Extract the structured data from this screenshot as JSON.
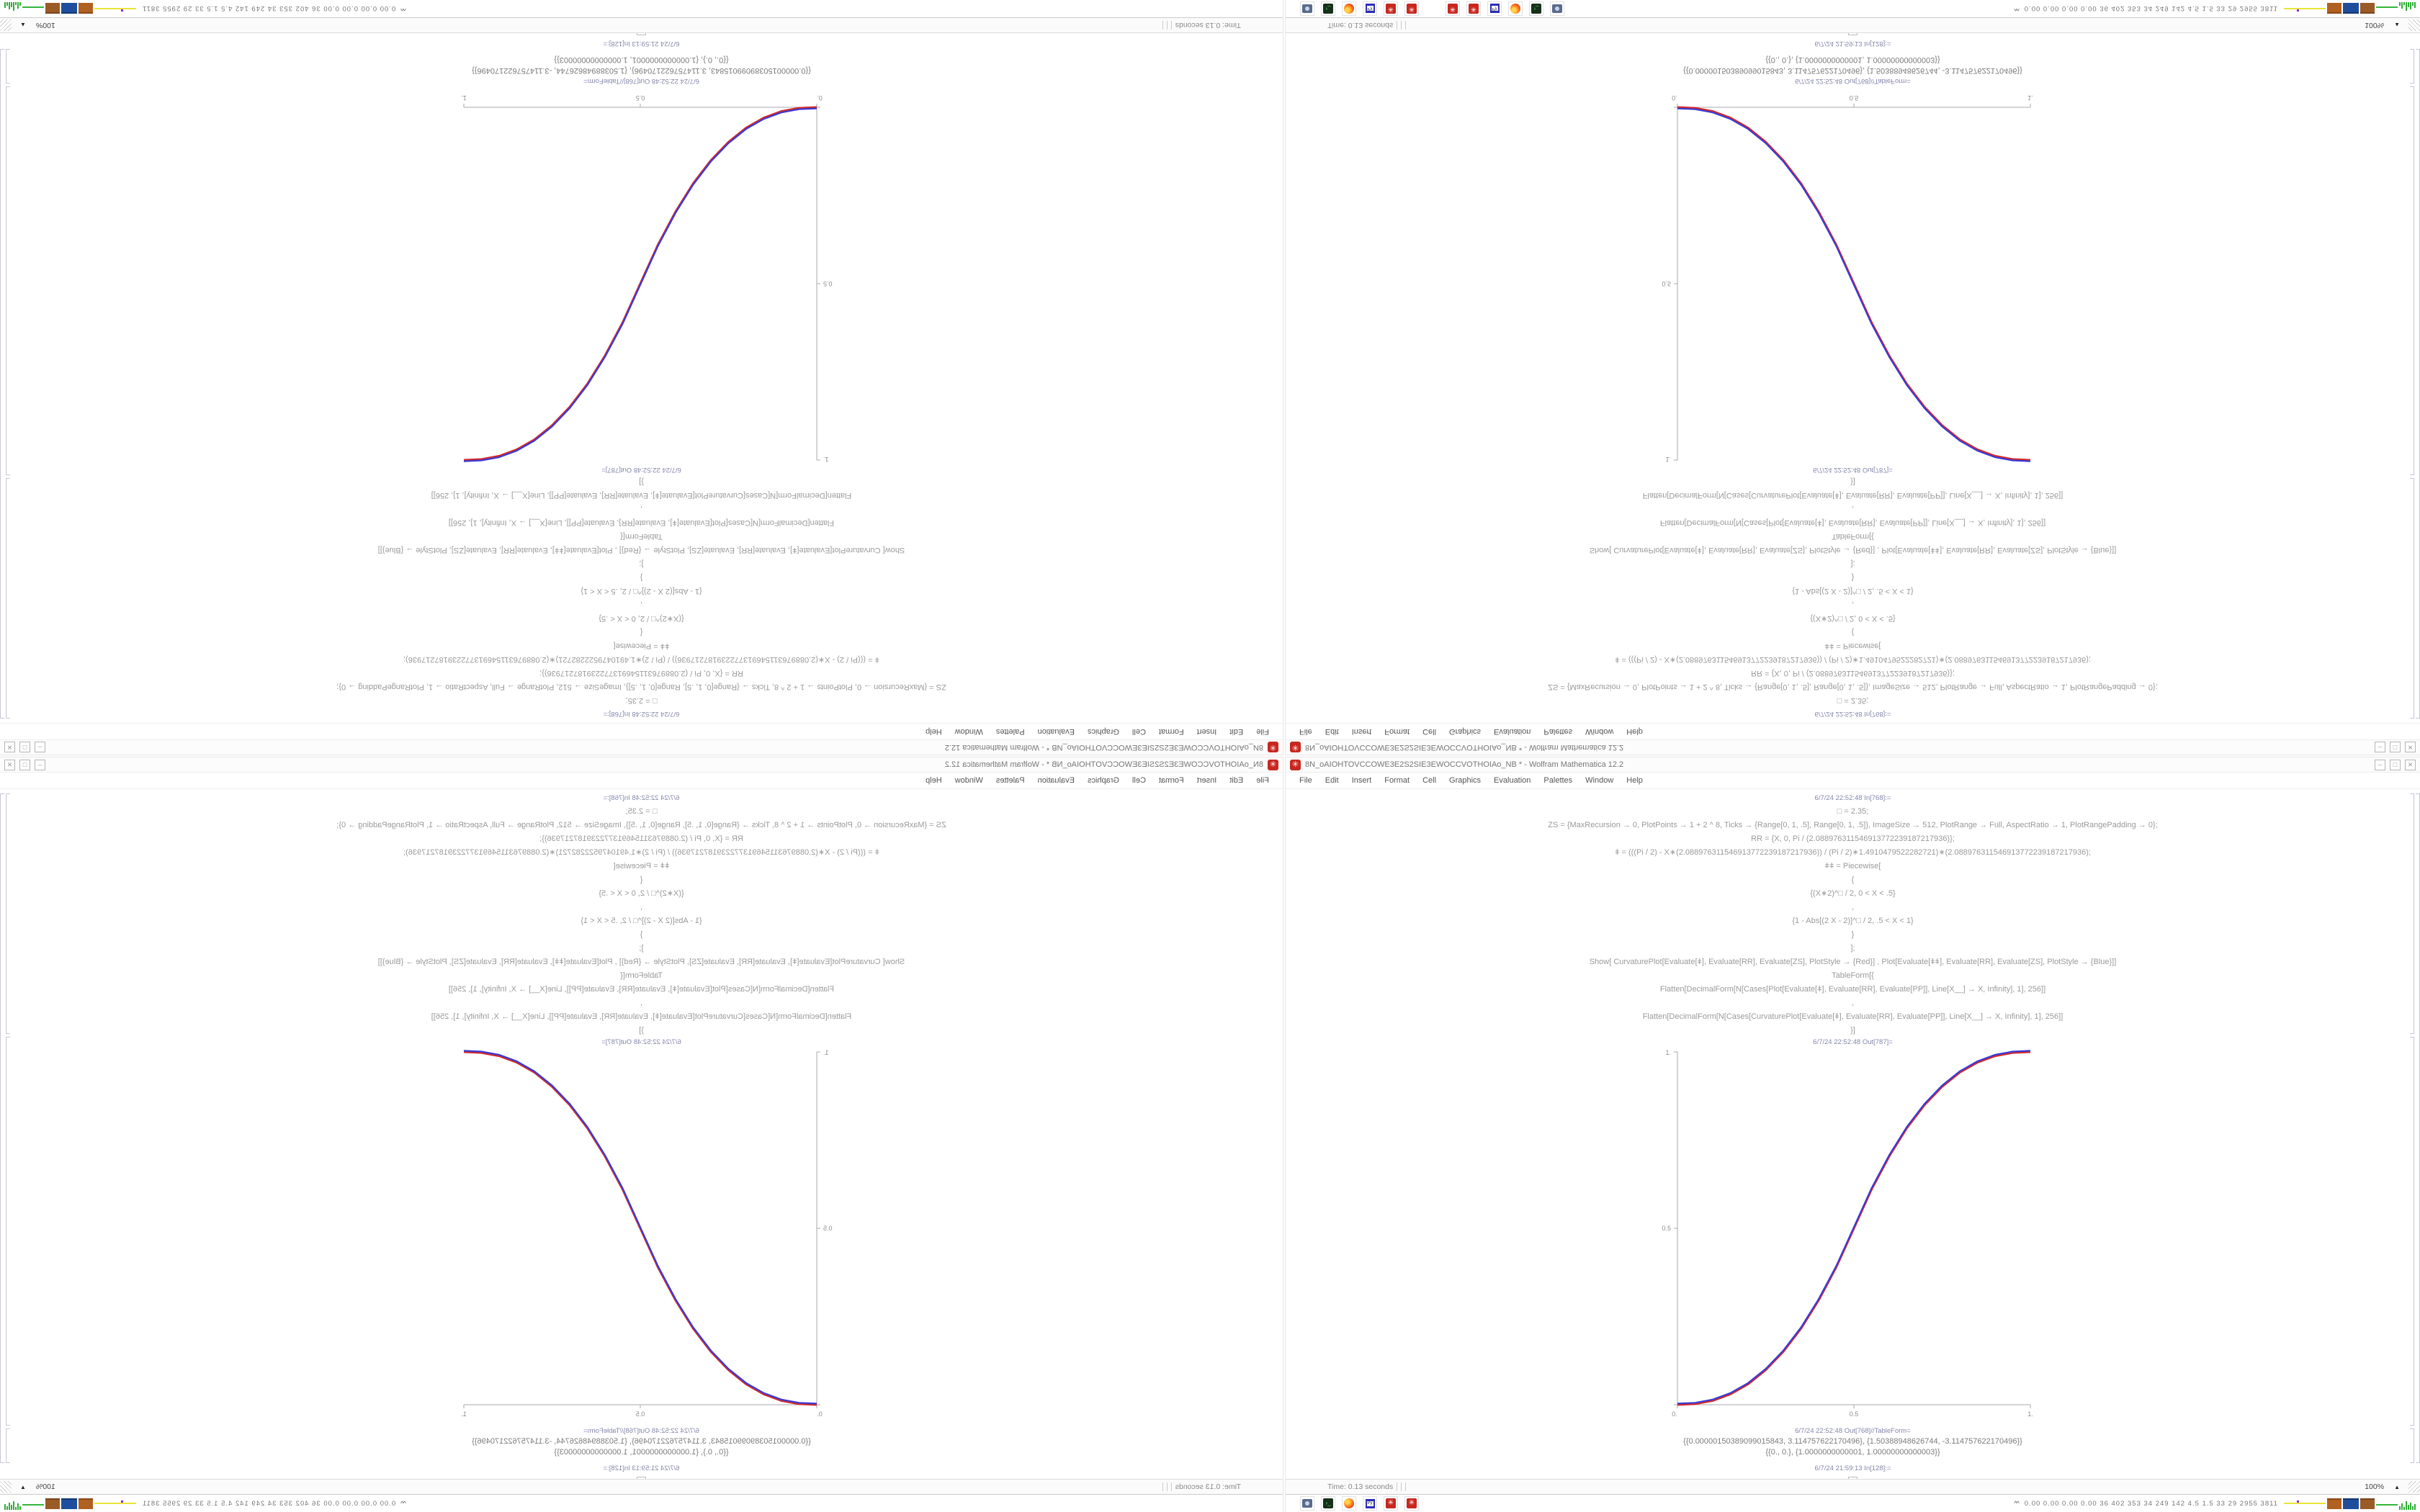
{
  "window": {
    "title": "8N_oAIOHTOVCCOWE3E2S2SIE3EWOCCVOTHOIAo_NB * - Wolfram Mathematica 12.2",
    "app_icon_glyph": "✳",
    "controls": [
      "–",
      "□",
      "✕"
    ],
    "menu": [
      "File",
      "Edit",
      "Insert",
      "Format",
      "Cell",
      "Graphics",
      "Evaluation",
      "Palettes",
      "Window",
      "Help"
    ],
    "status": {
      "time": "Time: 0.13 seconds",
      "zoom": "100%",
      "zoom_arrow": "▲"
    }
  },
  "notebook": {
    "in_label_top": "6/7/24 22:52:48 In[768]:=",
    "code_lines": [
      "□ = 2.35;",
      "ZS = {MaxRecursion → 0, PlotPoints → 1 + 2 ^ 8, Ticks → {Range[0, 1, .5], Range[0, 1, .5]}, ImageSize → 512, PlotRange → Full, AspectRatio → 1, PlotRangePadding → 0};",
      "RR = {X, 0, Pi / (2.088976311546913772239187217936)};",
      "ǂ = (((Pi / 2) - X∗(2.088976311546913772239187217936)) / (Pi / 2)∗1.4910479522282721)∗(2.088976311546913772239187217936);",
      "ǂǂ = Piecewise[",
      "{",
      "{(X∗2)^□ / 2, 0 < X < .5}",
      ",",
      "{1 - Abs[(2 X - 2)]^□ / 2, .5 < X < 1}",
      "}",
      "];",
      "Show[  CurvaturePlot[Evaluate[ǂ], Evaluate[RR], Evaluate[ZS], PlotStyle → {Red}]  ,  Plot[Evaluate[ǂǂ], Evaluate[RR], Evaluate[ZS], PlotStyle → {Blue}]]",
      "TableForm[{",
      "Flatten[DecimalForm[N[Cases[Plot[Evaluate[ǂ], Evaluate[RR], Evaluate[PP]], Line[X__] → X, Infinity], 1], 256]]",
      ",",
      "Flatten[DecimalForm[N[Cases[CurvaturePlot[Evaluate[ǂ], Evaluate[RR], Evaluate[PP]], Line[X__] → X, Infinity], 1], 256]]",
      "}]"
    ],
    "out_plot_label": "6/7/24 22:52:48 Out[787]=",
    "out_table_label": "6/7/24 22:52:48 Out[768]//TableForm=",
    "table_rows": [
      "{{0.00000150389099015843, 3.114757622170496}, {1.50388948626744, -3.114757622170496}}",
      "{{0., 0.}, {1.0000000000001, 1.00000000000003}}"
    ],
    "in_label_bottom": "6/7/24 21:59:13 In[128]:=",
    "insertion_plus": "+"
  },
  "taskbar": {
    "chevron": "^^",
    "tray_stats": "0.00 0.00 0.00 0.00   36   402   353   34   249   142   4.5   1.5   33   29   2955 3811",
    "floppy_label": "Py",
    "icon_group_1": [
      "mathematica",
      "mathematica",
      "floppy-editor",
      "firefox",
      "terminal",
      "screenshot-tool"
    ],
    "icon_group_2": [
      "screenshot-tool",
      "terminal",
      "firefox",
      "floppy-editor",
      "mathematica",
      "mathematica"
    ]
  },
  "chart_data": {
    "type": "line",
    "title": "",
    "xlabel": "",
    "ylabel": "",
    "xlim": [
      0,
      1
    ],
    "ylim": [
      0,
      1
    ],
    "x_ticks": [
      "0.",
      "0.5",
      "1."
    ],
    "y_ticks": [
      "0.",
      "0.5",
      "1."
    ],
    "grid": false,
    "legend_position": "none",
    "description": "Sigmoid-like piecewise power curve (2x)^2.35/2 for 0<x<.5 and 1-Abs[(2x-2)]^2.35/2 for .5<x<1; red CurvaturePlot and blue Plot overlap",
    "series": [
      {
        "name": "CurvaturePlot (Red)",
        "color": "#d42a2a",
        "points": [
          [
            0,
            0
          ],
          [
            0.05,
            0.0022
          ],
          [
            0.1,
            0.0114
          ],
          [
            0.15,
            0.0297
          ],
          [
            0.2,
            0.0582
          ],
          [
            0.25,
            0.0983
          ],
          [
            0.3,
            0.1505
          ],
          [
            0.35,
            0.2158
          ],
          [
            0.4,
            0.2959
          ],
          [
            0.45,
            0.3898
          ],
          [
            0.5,
            0.5
          ],
          [
            0.55,
            0.6102
          ],
          [
            0.6,
            0.7041
          ],
          [
            0.65,
            0.7842
          ],
          [
            0.7,
            0.8495
          ],
          [
            0.75,
            0.9017
          ],
          [
            0.8,
            0.9418
          ],
          [
            0.85,
            0.9703
          ],
          [
            0.9,
            0.9886
          ],
          [
            0.95,
            0.9978
          ],
          [
            1,
            1
          ]
        ]
      },
      {
        "name": "Plot (Blue)",
        "color": "#3a3ad4",
        "points": [
          [
            0,
            0
          ],
          [
            0.05,
            0.0022
          ],
          [
            0.1,
            0.0114
          ],
          [
            0.15,
            0.0297
          ],
          [
            0.2,
            0.0582
          ],
          [
            0.25,
            0.0983
          ],
          [
            0.3,
            0.1505
          ],
          [
            0.35,
            0.2158
          ],
          [
            0.4,
            0.2959
          ],
          [
            0.45,
            0.3898
          ],
          [
            0.5,
            0.5
          ],
          [
            0.55,
            0.6102
          ],
          [
            0.6,
            0.7041
          ],
          [
            0.65,
            0.7842
          ],
          [
            0.7,
            0.8495
          ],
          [
            0.75,
            0.9017
          ],
          [
            0.8,
            0.9418
          ],
          [
            0.85,
            0.9703
          ],
          [
            0.9,
            0.9886
          ],
          [
            0.95,
            0.9978
          ],
          [
            1,
            1
          ]
        ]
      }
    ]
  }
}
